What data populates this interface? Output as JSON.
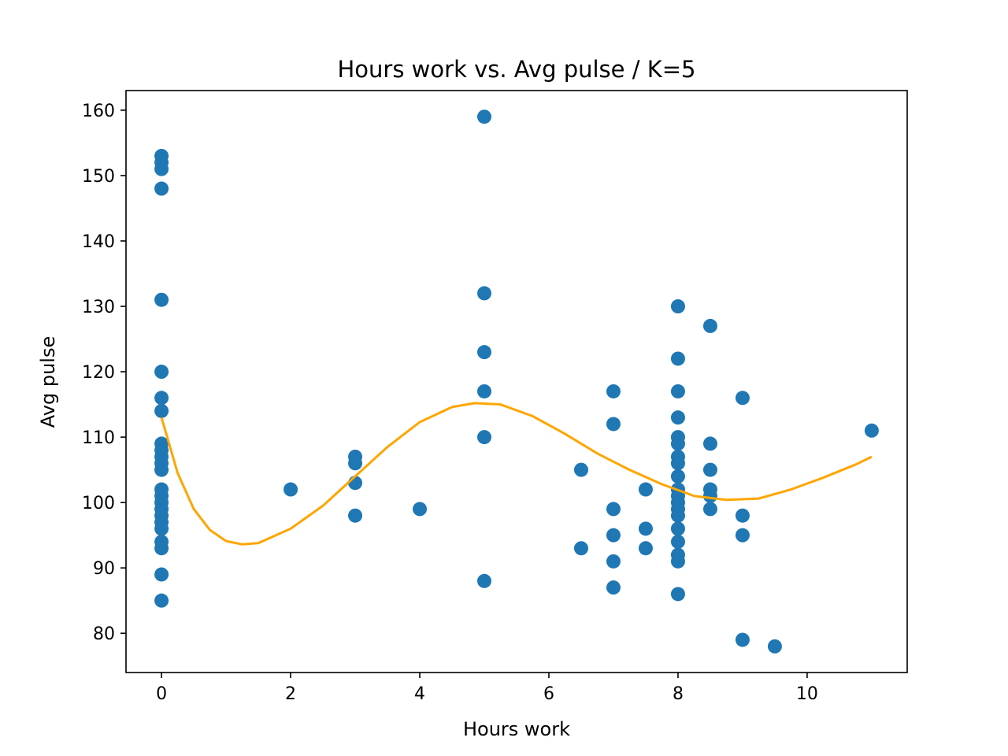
{
  "chart_data": {
    "type": "scatter",
    "title": "Hours work vs. Avg pulse / K=5",
    "xlabel": "Hours work",
    "ylabel": "Avg pulse",
    "xlim": [
      -0.55,
      11.55
    ],
    "ylim": [
      74,
      163
    ],
    "xticks": [
      0,
      2,
      4,
      6,
      8,
      10
    ],
    "yticks": [
      80,
      90,
      100,
      110,
      120,
      130,
      140,
      150,
      160
    ],
    "grid": false,
    "legend": "none",
    "point_color": "#1f77b4",
    "fit_color": "#ffa500",
    "points": [
      [
        0,
        153
      ],
      [
        0,
        152
      ],
      [
        0,
        151
      ],
      [
        0,
        148
      ],
      [
        0,
        131
      ],
      [
        0,
        120
      ],
      [
        0,
        116
      ],
      [
        0,
        114
      ],
      [
        0,
        109
      ],
      [
        0,
        108
      ],
      [
        0,
        107
      ],
      [
        0,
        106
      ],
      [
        0,
        105
      ],
      [
        0,
        102
      ],
      [
        0,
        101
      ],
      [
        0,
        100
      ],
      [
        0,
        99
      ],
      [
        0,
        98
      ],
      [
        0,
        97
      ],
      [
        0,
        96
      ],
      [
        0,
        94
      ],
      [
        0,
        93
      ],
      [
        0,
        89
      ],
      [
        0,
        85
      ],
      [
        2,
        102
      ],
      [
        3,
        107
      ],
      [
        3,
        106
      ],
      [
        3,
        103
      ],
      [
        3,
        98
      ],
      [
        4,
        99
      ],
      [
        5,
        159
      ],
      [
        5,
        132
      ],
      [
        5,
        123
      ],
      [
        5,
        117
      ],
      [
        5,
        110
      ],
      [
        5,
        88
      ],
      [
        6.5,
        105
      ],
      [
        6.5,
        93
      ],
      [
        7,
        117
      ],
      [
        7,
        112
      ],
      [
        7,
        99
      ],
      [
        7,
        95
      ],
      [
        7,
        91
      ],
      [
        7,
        87
      ],
      [
        7.5,
        102
      ],
      [
        7.5,
        96
      ],
      [
        7.5,
        93
      ],
      [
        8,
        130
      ],
      [
        8,
        122
      ],
      [
        8,
        117
      ],
      [
        8,
        113
      ],
      [
        8,
        110
      ],
      [
        8,
        109
      ],
      [
        8,
        107
      ],
      [
        8,
        106
      ],
      [
        8,
        104
      ],
      [
        8,
        102
      ],
      [
        8,
        101
      ],
      [
        8,
        100
      ],
      [
        8,
        99
      ],
      [
        8,
        98
      ],
      [
        8,
        96
      ],
      [
        8,
        94
      ],
      [
        8,
        92
      ],
      [
        8,
        91
      ],
      [
        8,
        86
      ],
      [
        8.5,
        127
      ],
      [
        8.5,
        109
      ],
      [
        8.5,
        105
      ],
      [
        8.5,
        102
      ],
      [
        8.5,
        101
      ],
      [
        8.5,
        99
      ],
      [
        9,
        116
      ],
      [
        9,
        98
      ],
      [
        9,
        95
      ],
      [
        9,
        79
      ],
      [
        9.5,
        78
      ],
      [
        11,
        111
      ]
    ],
    "fit_curve": [
      [
        0,
        113
      ],
      [
        0.25,
        104.5
      ],
      [
        0.5,
        99
      ],
      [
        0.75,
        95.8
      ],
      [
        1,
        94.1
      ],
      [
        1.25,
        93.6
      ],
      [
        1.5,
        93.8
      ],
      [
        2,
        96
      ],
      [
        2.5,
        99.5
      ],
      [
        3,
        104
      ],
      [
        3.5,
        108.5
      ],
      [
        4,
        112.3
      ],
      [
        4.5,
        114.6
      ],
      [
        4.85,
        115.2
      ],
      [
        5.25,
        115
      ],
      [
        5.75,
        113.2
      ],
      [
        6.25,
        110.5
      ],
      [
        6.75,
        107.5
      ],
      [
        7.25,
        105
      ],
      [
        7.75,
        102.8
      ],
      [
        8.25,
        101
      ],
      [
        8.75,
        100.4
      ],
      [
        9.25,
        100.6
      ],
      [
        9.75,
        102
      ],
      [
        10.25,
        103.8
      ],
      [
        10.75,
        105.8
      ],
      [
        11,
        107
      ]
    ]
  }
}
